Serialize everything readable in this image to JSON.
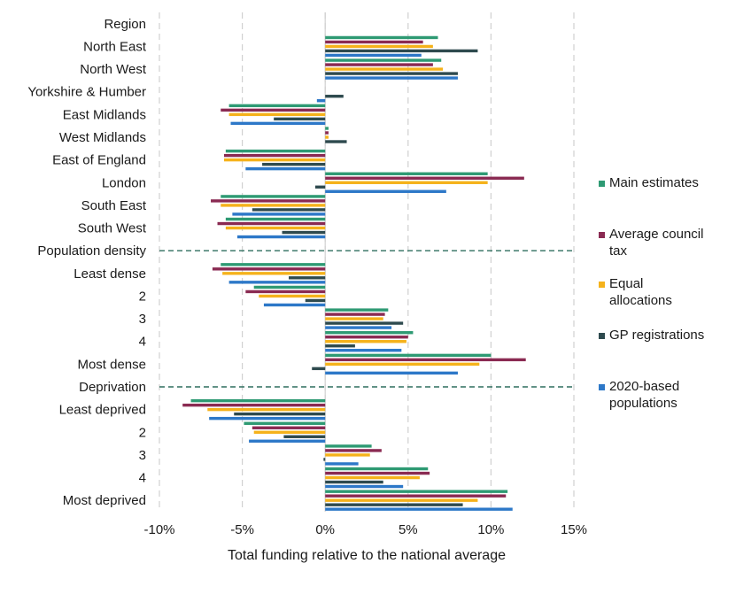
{
  "chart_data": {
    "type": "bar",
    "orientation": "horizontal",
    "xlabel": "Total funding relative to the national average",
    "xlim": [
      -10,
      15
    ],
    "xticks": [
      "-10%",
      "-5%",
      "0%",
      "5%",
      "10%",
      "15%"
    ],
    "grid": "vertical dashed",
    "legend_position": "right",
    "categories": [
      "Region",
      "North East",
      "North West",
      "Yorkshire & Humber",
      "East Midlands",
      "West Midlands",
      "East of England",
      "London",
      "South East",
      "South West",
      "Population density",
      "Least dense",
      "2",
      "3",
      "4",
      "Most dense",
      "Deprivation",
      "Least deprived",
      "2",
      "3",
      "4",
      "Most deprived"
    ],
    "section_headers": [
      "Population density",
      "Deprivation"
    ],
    "series": [
      {
        "name": "Main estimates",
        "color": "#2e9a73",
        "values": [
          null,
          6.8,
          7.0,
          0,
          -5.8,
          0.2,
          -6.0,
          9.8,
          -6.3,
          -6.0,
          null,
          -6.3,
          -4.3,
          3.8,
          5.3,
          10.0,
          null,
          -8.1,
          -4.9,
          2.8,
          6.2,
          11.0
        ]
      },
      {
        "name": "Average council tax",
        "color": "#8a2a52",
        "values": [
          null,
          5.9,
          6.5,
          0,
          -6.3,
          0.2,
          -6.1,
          12.0,
          -6.9,
          -6.5,
          null,
          -6.8,
          -4.8,
          3.6,
          5.0,
          12.1,
          null,
          -8.6,
          -4.4,
          3.4,
          6.3,
          10.9
        ]
      },
      {
        "name": "Equal allocations",
        "color": "#f5b21b",
        "values": [
          null,
          6.5,
          7.1,
          0,
          -5.8,
          0.2,
          -6.1,
          9.8,
          -6.3,
          -6.0,
          null,
          -6.2,
          -4.0,
          3.5,
          4.9,
          9.3,
          null,
          -7.1,
          -4.3,
          2.7,
          5.7,
          9.2
        ]
      },
      {
        "name": "GP registrations",
        "color": "#2e4a4e",
        "values": [
          null,
          9.2,
          8.0,
          1.1,
          -3.1,
          1.3,
          -3.8,
          -0.6,
          -4.4,
          -2.6,
          null,
          -2.2,
          -1.2,
          4.7,
          1.8,
          -0.8,
          null,
          -5.5,
          -2.5,
          -0.1,
          3.5,
          8.3
        ]
      },
      {
        "name": "2020-based populations",
        "color": "#2d78c8",
        "values": [
          null,
          5.8,
          8.0,
          -0.5,
          -5.7,
          0,
          -4.8,
          7.3,
          -5.6,
          -5.3,
          null,
          -5.8,
          -3.7,
          4.0,
          4.6,
          8.0,
          null,
          -7.0,
          -4.6,
          2.0,
          4.7,
          11.3
        ]
      }
    ]
  }
}
